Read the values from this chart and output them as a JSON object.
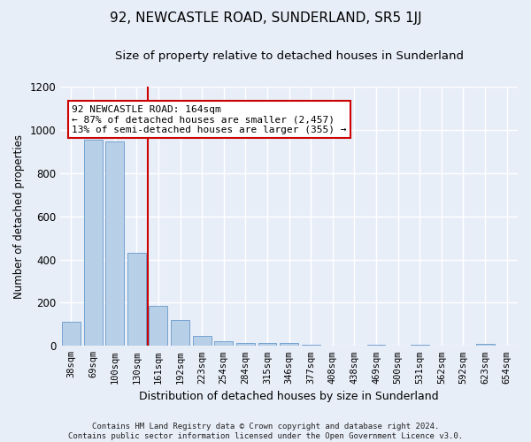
{
  "title": "92, NEWCASTLE ROAD, SUNDERLAND, SR5 1JJ",
  "subtitle": "Size of property relative to detached houses in Sunderland",
  "xlabel": "Distribution of detached houses by size in Sunderland",
  "ylabel": "Number of detached properties",
  "categories": [
    "38sqm",
    "69sqm",
    "100sqm",
    "130sqm",
    "161sqm",
    "192sqm",
    "223sqm",
    "254sqm",
    "284sqm",
    "315sqm",
    "346sqm",
    "377sqm",
    "408sqm",
    "438sqm",
    "469sqm",
    "500sqm",
    "531sqm",
    "562sqm",
    "592sqm",
    "623sqm",
    "654sqm"
  ],
  "values": [
    110,
    955,
    945,
    430,
    185,
    120,
    45,
    20,
    15,
    15,
    15,
    5,
    0,
    0,
    5,
    0,
    5,
    0,
    0,
    10,
    0
  ],
  "bar_color": "#b8cfe8",
  "bar_edge_color": "#6699cc",
  "vline_color": "#cc0000",
  "annotation_text": "92 NEWCASTLE ROAD: 164sqm\n← 87% of detached houses are smaller (2,457)\n13% of semi-detached houses are larger (355) →",
  "annotation_box_color": "#ffffff",
  "annotation_box_edge": "#cc0000",
  "ylim": [
    0,
    1200
  ],
  "yticks": [
    0,
    200,
    400,
    600,
    800,
    1000,
    1200
  ],
  "footer": "Contains HM Land Registry data © Crown copyright and database right 2024.\nContains public sector information licensed under the Open Government Licence v3.0.",
  "background_color": "#e8eef8",
  "plot_background": "#e8eef8",
  "grid_color": "#ffffff",
  "title_fontsize": 11,
  "subtitle_fontsize": 9.5,
  "ylabel_fontsize": 8.5,
  "xlabel_fontsize": 9,
  "tick_fontsize": 7.5,
  "footer_fontsize": 6.5,
  "annot_fontsize": 8
}
